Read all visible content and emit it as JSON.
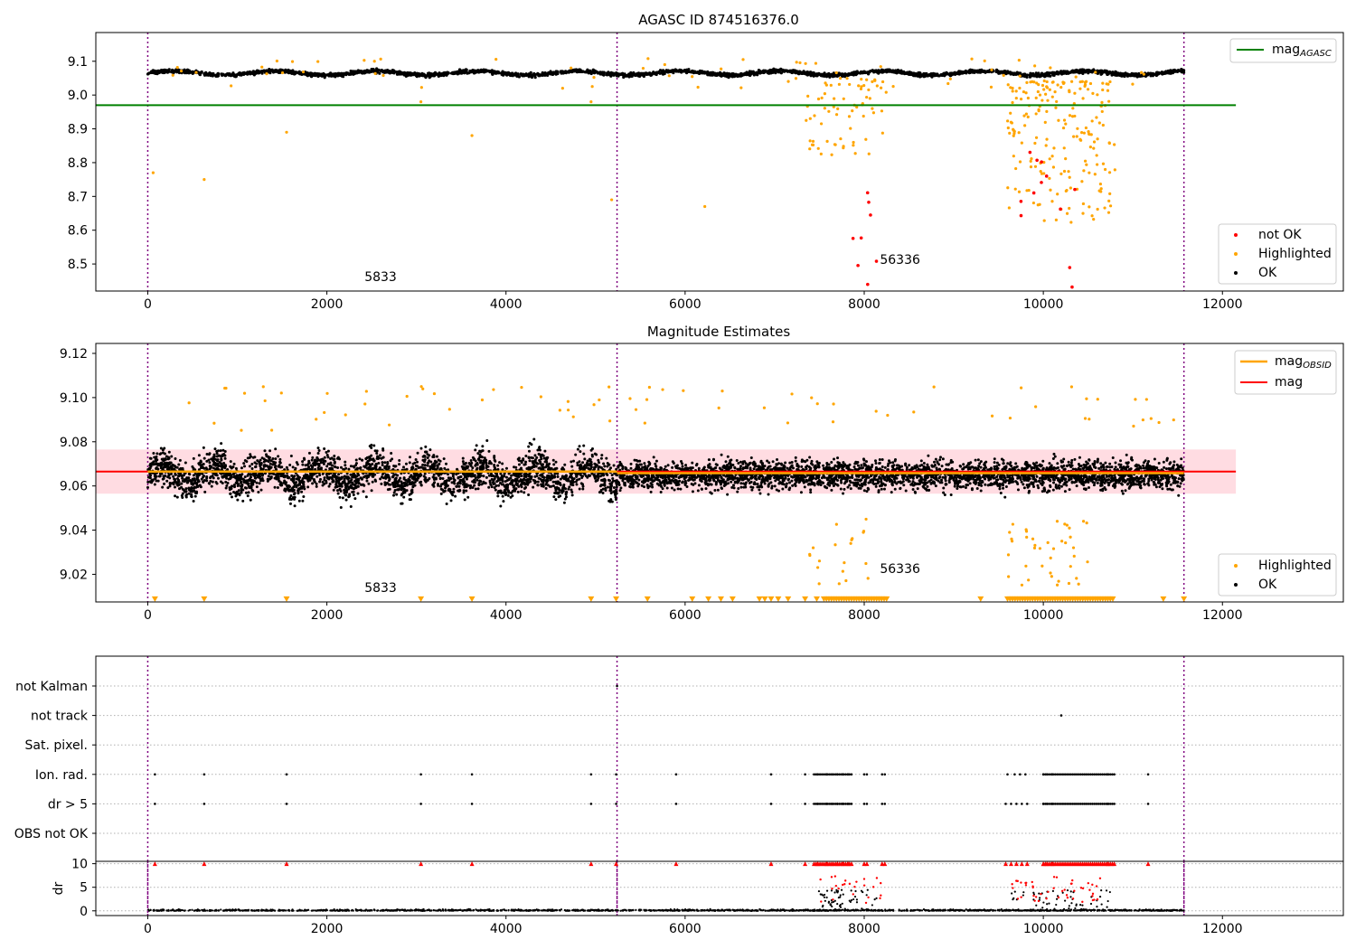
{
  "chart_data": [
    {
      "type": "scatter",
      "title": "AGASC ID 874516376.0",
      "xlim": [
        -580,
        13350
      ],
      "ylim": [
        8.42,
        9.185
      ],
      "x_ticks": [
        "0",
        "2000",
        "4000",
        "6000",
        "8000",
        "10000",
        "12000"
      ],
      "y_ticks": [
        "8.5",
        "8.6",
        "8.7",
        "8.8",
        "8.9",
        "9.0",
        "9.1"
      ],
      "obs_boundaries": [
        0,
        5240,
        11570
      ],
      "obsid_labels": [
        {
          "text": "5833",
          "x": 2600,
          "y": 8.45
        },
        {
          "text": "56336",
          "x": 8400,
          "y": 8.5
        }
      ],
      "agasc_mag": {
        "value": 8.97,
        "x_range": [
          0,
          12150
        ]
      },
      "series": [
        {
          "name": "OK",
          "color": "#000000",
          "band": {
            "center": 9.065,
            "amplitude": 0.02,
            "x_range": [
              0,
              11570
            ]
          }
        },
        {
          "name": "Highlighted",
          "color": "#FFA500",
          "clusters": [
            {
              "x": [
                7350,
                8250
              ],
              "y": [
                8.82,
                9.05
              ],
              "count": 70
            },
            {
              "x": [
                9600,
                10800
              ],
              "y": [
                8.62,
                9.04
              ],
              "count": 200
            }
          ]
        },
        {
          "name": "not OK",
          "color": "#FF0000",
          "clusters": [
            {
              "x": [
                7800,
                8200
              ],
              "y": [
                8.43,
                8.72
              ],
              "count": 8
            },
            {
              "x": [
                9550,
                10450
              ],
              "y": [
                8.42,
                8.84
              ],
              "count": 12
            }
          ]
        }
      ],
      "legend_top": {
        "position": "top-right",
        "label": "mag",
        "sub": "AGASC",
        "color": "#008000"
      },
      "legend_bottom": {
        "position": "bottom-right",
        "entries": [
          {
            "label": "not OK",
            "color": "#FF0000"
          },
          {
            "label": "Highlighted",
            "color": "#FFA500"
          },
          {
            "label": "OK",
            "color": "#000000"
          }
        ]
      }
    },
    {
      "type": "scatter",
      "title": "Magnitude Estimates",
      "xlim": [
        -580,
        13350
      ],
      "ylim": [
        9.0075,
        9.1245
      ],
      "x_ticks": [
        "0",
        "2000",
        "4000",
        "6000",
        "8000",
        "10000",
        "12000"
      ],
      "y_ticks": [
        "9.02",
        "9.04",
        "9.06",
        "9.08",
        "9.10",
        "9.12"
      ],
      "obs_boundaries": [
        0,
        5240,
        11570
      ],
      "obsid_labels": [
        {
          "text": "5833",
          "x": 2600,
          "y": 9.012
        },
        {
          "text": "56336",
          "x": 8400,
          "y": 9.0205
        }
      ],
      "mag_line": {
        "value": 9.0665,
        "x_range": [
          -580,
          12150
        ],
        "color": "#FF0000"
      },
      "mag_band": {
        "low": 9.0565,
        "high": 9.0765,
        "color": "#FFC0CB"
      },
      "obsid_mags": [
        {
          "value": 9.0665,
          "x_range": [
            0,
            5240
          ]
        },
        {
          "value": 9.0658,
          "x_range": [
            5240,
            11570
          ]
        }
      ],
      "series": [
        {
          "name": "OK",
          "color": "#000000",
          "segments": [
            {
              "x_range": [
                0,
                5240
              ],
              "center": 9.065,
              "spread": 0.012
            },
            {
              "x_range": [
                5240,
                11570
              ],
              "center": 9.065,
              "spread": 0.009
            }
          ]
        },
        {
          "name": "Highlighted",
          "color": "#FFA500",
          "notes": "out-of-range values drawn as triangles at bottom",
          "triangles_x": [
            80,
            630,
            1550,
            3050,
            3620,
            4950,
            5230,
            5580,
            6080,
            6260,
            6400,
            6530,
            6830,
            6890,
            6960,
            7040,
            7150,
            7340,
            7470,
            9300,
            11340,
            11570
          ],
          "triangle_clusters": [
            [
              7550,
              8250
            ],
            [
              9600,
              10800
            ]
          ]
        }
      ],
      "legend_top": {
        "position": "top-right",
        "entries": [
          {
            "label": "mag",
            "sub": "OBSID",
            "color": "#FFA500"
          },
          {
            "label": "mag",
            "sub": "",
            "color": "#FF0000"
          }
        ]
      },
      "legend_bottom": {
        "position": "bottom-right",
        "entries": [
          {
            "label": "Highlighted",
            "color": "#FFA500"
          },
          {
            "label": "OK",
            "color": "#000000"
          }
        ]
      }
    },
    {
      "type": "scatter",
      "title": "",
      "xlim": [
        -580,
        13350
      ],
      "x_ticks": [
        "0",
        "2000",
        "4000",
        "6000",
        "8000",
        "10000",
        "12000"
      ],
      "obs_boundaries": [
        0,
        5240,
        11570
      ],
      "flags": [
        "not Kalman",
        "not track",
        "Sat. pixel.",
        "Ion. rad.",
        "dr > 5",
        "OBS not OK"
      ],
      "flag_points": {
        "not Kalman": [
          5240
        ],
        "not track": [
          10200
        ],
        "Sat. pixel.": [],
        "Ion. rad.": [
          80,
          630,
          1550,
          3050,
          3620,
          4950,
          5230,
          5900,
          6960,
          7340,
          7480,
          7580,
          7640,
          7700,
          7760,
          7820,
          8000,
          8030,
          8200,
          8230,
          9600,
          9680,
          9740,
          9800,
          10000,
          10040,
          10100,
          10720,
          11170
        ],
        "dr > 5": [
          80,
          630,
          1550,
          3050,
          3620,
          4950,
          5230,
          5900,
          6960,
          7340,
          7480,
          7580,
          7640,
          7700,
          7760,
          7820,
          8000,
          8030,
          8200,
          8230,
          9580,
          9640,
          9700,
          9760,
          9820,
          10000,
          10040,
          10100,
          10720,
          11170
        ],
        "OBS not OK": []
      },
      "flag_clusters": {
        "Ion. rad.": [
          [
            7440,
            7860
          ],
          [
            10000,
            10800
          ]
        ],
        "dr > 5": [
          [
            7440,
            7860
          ],
          [
            10000,
            10800
          ]
        ]
      },
      "dr_panel": {
        "ylabel": "dr",
        "y_ticks": [
          "0",
          "5",
          "10"
        ],
        "ylim": [
          -1,
          10.5
        ],
        "clip_value": 10,
        "clipped_x": [
          80,
          630,
          1550,
          3050,
          3620,
          4950,
          5230,
          5900,
          6960,
          7340,
          7480,
          7580,
          7640,
          7700,
          7760,
          7820,
          8000,
          8030,
          8200,
          8230,
          9580,
          9640,
          9700,
          9760,
          9820,
          10000,
          10040,
          10100,
          10720,
          11170
        ],
        "clipped_clusters": [
          [
            7440,
            7860
          ],
          [
            10000,
            10800
          ]
        ]
      }
    }
  ]
}
